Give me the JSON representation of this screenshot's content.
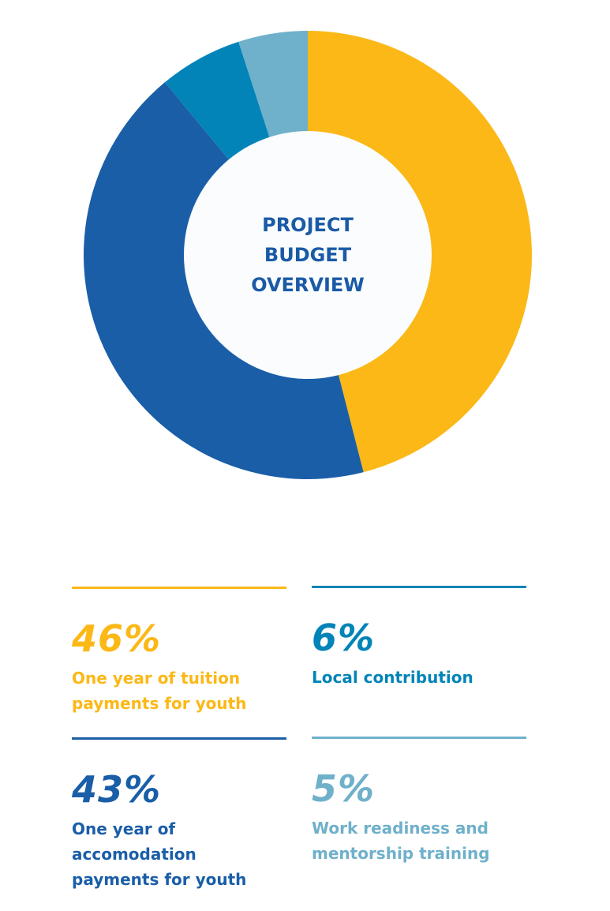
{
  "chart_data": {
    "type": "pie",
    "variant": "donut",
    "title_lines": [
      "PROJECT",
      "BUDGET",
      "OVERVIEW"
    ],
    "slices": [
      {
        "value": 46,
        "percent_label": "46%",
        "label": "One year of tuition\npayments for youth",
        "color": "#fbb817"
      },
      {
        "value": 43,
        "percent_label": "43%",
        "label": "One year of\naccomodation\npayments for youth",
        "color": "#1a5ea8"
      },
      {
        "value": 6,
        "percent_label": "6%",
        "label": "Local contribution",
        "color": "#0384b8"
      },
      {
        "value": 5,
        "percent_label": "5%",
        "label": "Work readiness and\nmentorship training",
        "color": "#6fb0ca"
      }
    ],
    "title_color": "#1a5aa6",
    "hole_color": "#fafcfd",
    "legend_placement": "bottom"
  }
}
